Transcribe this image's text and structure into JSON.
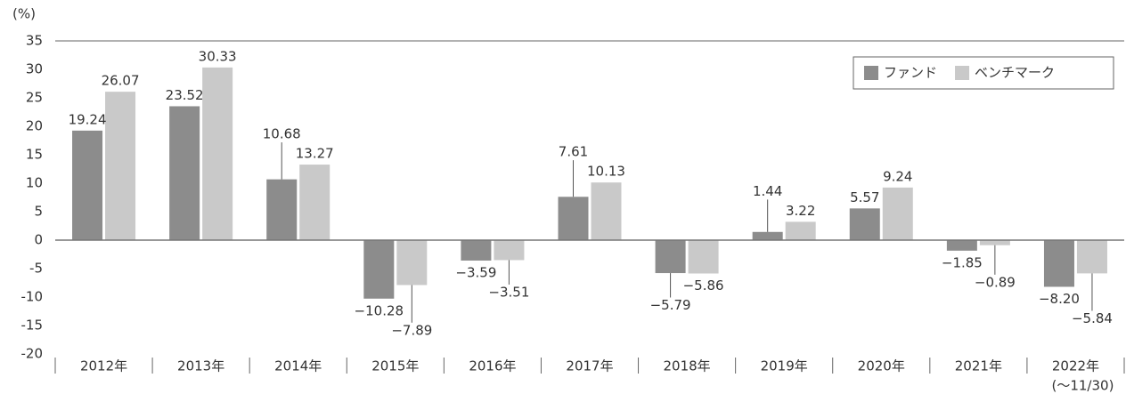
{
  "chart_data": {
    "type": "bar",
    "y_unit": "(%)",
    "categories": [
      "2012年",
      "2013年",
      "2014年",
      "2015年",
      "2016年",
      "2017年",
      "2018年",
      "2019年",
      "2020年",
      "2021年",
      "2022年"
    ],
    "last_category_note": "(〜11/30)",
    "series": [
      {
        "name": "ファンド",
        "color": "#8c8c8c",
        "values": [
          19.24,
          23.52,
          10.68,
          -10.28,
          -3.59,
          7.61,
          -5.79,
          1.44,
          5.57,
          -1.85,
          -8.2
        ],
        "value_labels": [
          "19.24",
          "23.52",
          "10.68",
          "−10.28",
          "−3.59",
          "7.61",
          "−5.79",
          "1.44",
          "5.57",
          "−1.85",
          "−8.20"
        ]
      },
      {
        "name": "ベンチマーク",
        "color": "#c9c9c9",
        "values": [
          26.07,
          30.33,
          13.27,
          -7.89,
          -3.51,
          10.13,
          -5.86,
          3.22,
          9.24,
          -0.89,
          -5.84
        ],
        "value_labels": [
          "26.07",
          "30.33",
          "13.27",
          "−7.89",
          "−3.51",
          "10.13",
          "−5.86",
          "3.22",
          "9.24",
          "−0.89",
          "−5.84"
        ]
      }
    ],
    "ylim": [
      -20,
      35
    ],
    "yticks": [
      35,
      30,
      25,
      20,
      15,
      10,
      5,
      0,
      -5,
      -10,
      -15,
      -20
    ],
    "grid": false,
    "legend": "upper right"
  }
}
